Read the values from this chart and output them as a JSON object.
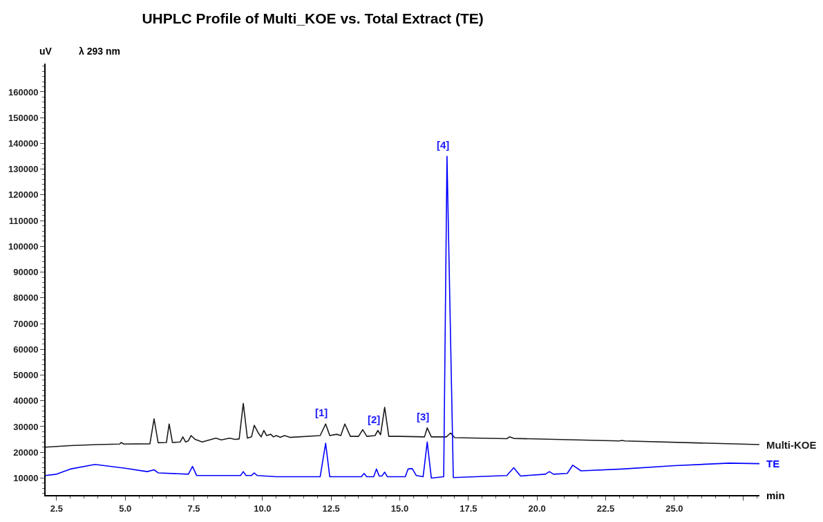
{
  "chart_data": {
    "type": "line",
    "title": "UHPLC Profile of Multi_KOE vs. Total Extract (TE)",
    "xlabel": "min",
    "ylabel": "uV",
    "annotations": [
      "λ 293 nm",
      {
        "text": "[1]",
        "x": 12.3,
        "y": 23500
      },
      {
        "text": "[2]",
        "x": 14.2,
        "y": 28500
      },
      {
        "text": "[3]",
        "x": 16.0,
        "y": 24000
      },
      {
        "text": "[4]",
        "x": 16.72,
        "y": 135000
      }
    ],
    "xlim": [
      2.1,
      28.1
    ],
    "xticks": [
      2.5,
      {
        "value": 5,
        "label": "5.0"
      },
      7.5,
      {
        "value": 10,
        "label": "10.0"
      },
      12.5,
      {
        "value": 15,
        "label": "15.0"
      },
      17.5,
      {
        "value": 20,
        "label": "20.0"
      },
      22.5,
      {
        "value": 25,
        "label": "25.0"
      },
      {
        "value": 27.5,
        "label": null
      }
    ],
    "ylim": [
      3400,
      171000
    ],
    "yticks": [
      10000,
      20000,
      30000,
      40000,
      50000,
      60000,
      70000,
      80000,
      90000,
      100000,
      110000,
      120000,
      130000,
      140000,
      150000,
      160000
    ],
    "grid": false,
    "legend": false,
    "marker": "none",
    "line_style": "solid",
    "series": [
      {
        "name": "Multi-KOE",
        "color": "#1a1a1a",
        "x": [
          2.1,
          3.0,
          4.0,
          4.8,
          4.85,
          4.95,
          5.9,
          6.05,
          6.2,
          6.5,
          6.6,
          6.72,
          7.0,
          7.1,
          7.2,
          7.3,
          7.4,
          7.55,
          7.8,
          8.3,
          8.5,
          8.8,
          9.0,
          9.15,
          9.3,
          9.45,
          9.6,
          9.7,
          9.85,
          9.95,
          10.05,
          10.15,
          10.3,
          10.4,
          10.5,
          10.65,
          10.8,
          11.0,
          12.1,
          12.3,
          12.45,
          12.7,
          12.85,
          13.0,
          13.2,
          13.5,
          13.65,
          13.8,
          14.1,
          14.2,
          14.3,
          14.45,
          14.6,
          15.0,
          15.9,
          16.0,
          16.15,
          16.7,
          16.85,
          17.0,
          18.9,
          19.0,
          19.15,
          23.0,
          23.1,
          23.2,
          28.1
        ],
        "values": [
          22000,
          22600,
          23000,
          23200,
          23800,
          23200,
          23300,
          33000,
          23700,
          23800,
          31000,
          23800,
          24000,
          26000,
          24000,
          24500,
          26500,
          25000,
          24000,
          25500,
          24800,
          25500,
          25000,
          25200,
          39000,
          25500,
          26000,
          30500,
          27500,
          26000,
          28500,
          26500,
          27000,
          26000,
          26500,
          25800,
          26500,
          25800,
          26500,
          31000,
          26500,
          27000,
          26500,
          31000,
          26200,
          26200,
          28800,
          26200,
          26500,
          28500,
          26800,
          37500,
          26200,
          26200,
          26000,
          29500,
          26000,
          26000,
          27500,
          25700,
          25300,
          26000,
          25400,
          24400,
          24600,
          24400,
          23000
        ]
      },
      {
        "name": "TE",
        "color": "#0000ff",
        "x": [
          2.1,
          2.5,
          3.0,
          3.9,
          5.0,
          5.8,
          6.05,
          6.2,
          7.3,
          7.45,
          7.6,
          9.2,
          9.3,
          9.4,
          9.6,
          9.7,
          9.8,
          10.5,
          12.1,
          12.3,
          12.45,
          13.6,
          13.7,
          13.8,
          14.05,
          14.15,
          14.25,
          14.35,
          14.45,
          14.55,
          15.2,
          15.3,
          15.45,
          15.6,
          15.85,
          16.0,
          16.15,
          16.6,
          16.72,
          16.95,
          18.9,
          19.15,
          19.4,
          20.3,
          20.45,
          20.6,
          21.1,
          21.3,
          21.6,
          23.1,
          25.0,
          27.0,
          28.1
        ],
        "values": [
          11000,
          11500,
          13500,
          15300,
          13800,
          12500,
          13200,
          12000,
          11500,
          14500,
          11000,
          11000,
          12500,
          11000,
          11000,
          12000,
          11000,
          10500,
          10500,
          23500,
          10500,
          10500,
          11800,
          10500,
          10500,
          13500,
          10800,
          10800,
          12300,
          10500,
          10500,
          13500,
          13700,
          11000,
          10500,
          24000,
          10000,
          10500,
          135000,
          10200,
          11000,
          14000,
          10800,
          11500,
          12500,
          11500,
          11800,
          15000,
          12800,
          13500,
          14800,
          15800,
          15600
        ]
      }
    ]
  }
}
